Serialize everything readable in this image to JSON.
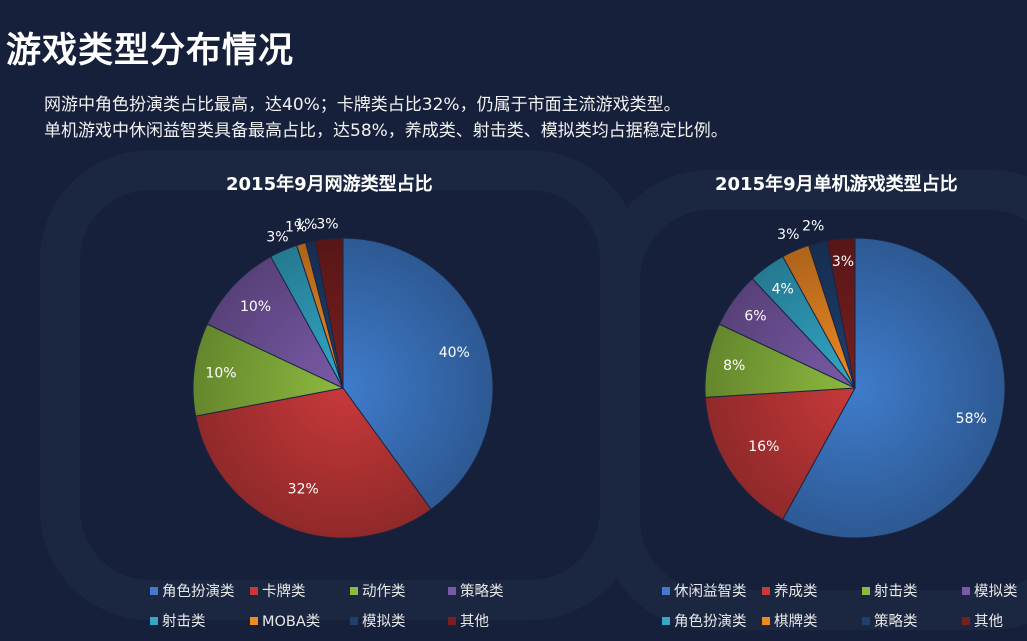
{
  "header": {
    "title": "游戏类型分布情况",
    "summary_lines": [
      "网游中角色扮演类占比最高，达40%；卡牌类占比32%，仍属于市面主流游戏类型。",
      "单机游戏中休闲益智类具备最高占比，达58%，养成类、射击类、模拟类均占据稳定比例。"
    ]
  },
  "chart_data": [
    {
      "type": "pie",
      "title": "2015年9月网游类型占比",
      "slices": [
        {
          "label": "角色扮演类",
          "value": 40,
          "color": "#3f7ccc"
        },
        {
          "label": "卡牌类",
          "value": 32,
          "color": "#c8393a"
        },
        {
          "label": "动作类",
          "value": 10,
          "color": "#8cba3f"
        },
        {
          "label": "策略类",
          "value": 10,
          "color": "#7a5aa8"
        },
        {
          "label": "射击类",
          "value": 3,
          "color": "#33a8c8"
        },
        {
          "label": "MOBA类",
          "value": 1,
          "color": "#f08a24"
        },
        {
          "label": "模拟类",
          "value": 1,
          "color": "#1f3f6e"
        },
        {
          "label": "其他",
          "value": 3,
          "color": "#7a1f1f"
        }
      ],
      "data_labels": [
        "40%",
        "32%",
        "10%",
        "10%",
        "3%",
        "1%",
        "1%",
        "3%"
      ],
      "legend_position": "bottom"
    },
    {
      "type": "pie",
      "title": "2015年9月单机游戏类型占比",
      "slices": [
        {
          "label": "休闲益智类",
          "value": 58,
          "color": "#3f7ccc"
        },
        {
          "label": "养成类",
          "value": 16,
          "color": "#c8393a"
        },
        {
          "label": "射击类",
          "value": 8,
          "color": "#8cba3f"
        },
        {
          "label": "模拟类",
          "value": 6,
          "color": "#7a5aa8"
        },
        {
          "label": "角色扮演类",
          "value": 4,
          "color": "#33a8c8"
        },
        {
          "label": "棋牌类",
          "value": 3,
          "color": "#f08a24"
        },
        {
          "label": "策略类",
          "value": 2,
          "color": "#1f3f6e"
        },
        {
          "label": "其他",
          "value": 3,
          "color": "#7a1f1f"
        }
      ],
      "data_labels": [
        "58%",
        "16%",
        "8%",
        "6%",
        "4%",
        "3%",
        "2%",
        "3%"
      ],
      "legend_position": "bottom"
    }
  ]
}
